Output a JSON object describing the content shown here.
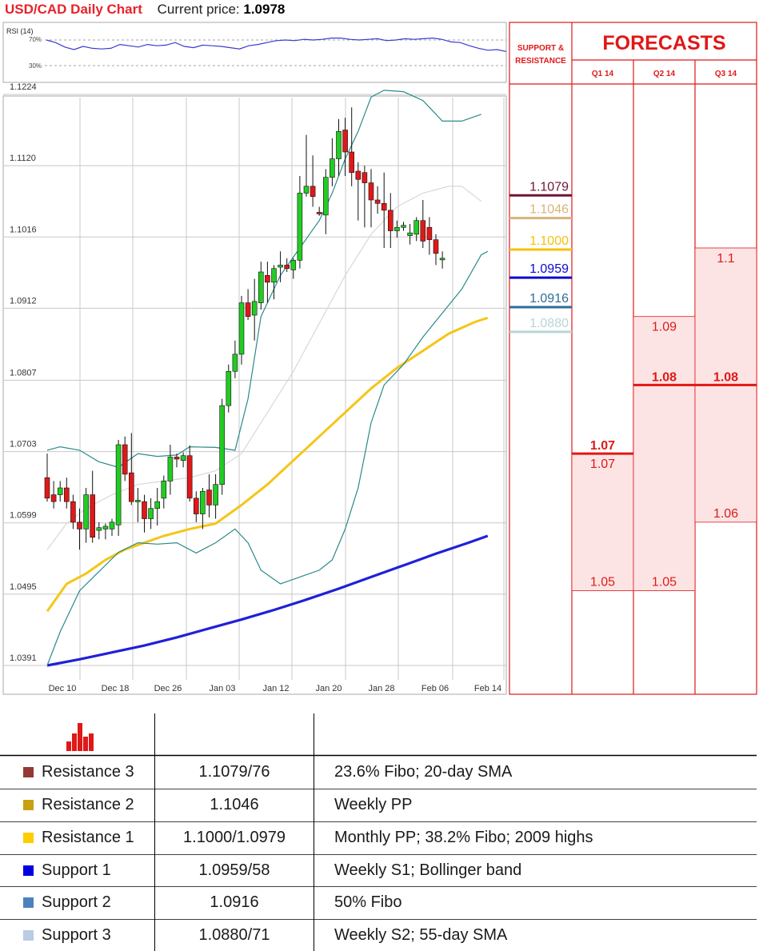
{
  "header": {
    "title": "USD/CAD Daily Chart",
    "current_price_label": "Current price:",
    "current_price": "1.0978"
  },
  "rsi": {
    "label": "RSI (14)",
    "upper_label": "70%",
    "lower_label": "30%",
    "values": [
      70,
      66,
      59,
      55,
      60,
      57,
      56,
      57,
      63,
      61,
      59,
      63,
      61,
      62,
      66,
      60,
      58,
      62,
      61,
      60,
      58,
      56,
      61,
      63,
      66,
      69,
      70,
      69,
      71,
      70,
      71,
      73,
      73,
      71,
      70,
      71,
      72,
      69,
      70,
      72,
      71,
      72,
      73,
      71,
      67,
      66,
      61,
      57,
      54,
      55,
      52
    ]
  },
  "chart_data": {
    "type": "candlestick",
    "title": "USD/CAD Daily Chart",
    "x_labels": [
      "Dec 10",
      "Dec 18",
      "Dec 26",
      "Jan 03",
      "Jan 12",
      "Jan 20",
      "Jan 28",
      "Feb 06",
      "Feb 14"
    ],
    "y_ticks": [
      "1.1224",
      "1.1120",
      "1.1016",
      "1.0912",
      "1.0807",
      "1.0703",
      "1.0599",
      "1.0495",
      "1.0391"
    ],
    "ylim": [
      1.0391,
      1.1224
    ],
    "candles": [
      {
        "o": 1.0665,
        "h": 1.07,
        "l": 1.063,
        "c": 1.0635
      },
      {
        "o": 1.064,
        "h": 1.066,
        "l": 1.062,
        "c": 1.063
      },
      {
        "o": 1.064,
        "h": 1.066,
        "l": 1.063,
        "c": 1.065
      },
      {
        "o": 1.065,
        "h": 1.0665,
        "l": 1.062,
        "c": 1.063
      },
      {
        "o": 1.063,
        "h": 1.064,
        "l": 1.059,
        "c": 1.06
      },
      {
        "o": 1.06,
        "h": 1.062,
        "l": 1.056,
        "c": 1.059
      },
      {
        "o": 1.059,
        "h": 1.065,
        "l": 1.057,
        "c": 1.064
      },
      {
        "o": 1.064,
        "h": 1.0675,
        "l": 1.057,
        "c": 1.0578
      },
      {
        "o": 1.0588,
        "h": 1.06,
        "l": 1.0575,
        "c": 1.0592
      },
      {
        "o": 1.059,
        "h": 1.0598,
        "l": 1.0575,
        "c": 1.0594
      },
      {
        "o": 1.059,
        "h": 1.0605,
        "l": 1.058,
        "c": 1.06
      },
      {
        "o": 1.0596,
        "h": 1.072,
        "l": 1.058,
        "c": 1.0713
      },
      {
        "o": 1.0713,
        "h": 1.0725,
        "l": 1.066,
        "c": 1.067
      },
      {
        "o": 1.0672,
        "h": 1.073,
        "l": 1.0625,
        "c": 1.063
      },
      {
        "o": 1.063,
        "h": 1.065,
        "l": 1.06,
        "c": 1.0632
      },
      {
        "o": 1.063,
        "h": 1.064,
        "l": 1.0585,
        "c": 1.0605
      },
      {
        "o": 1.0605,
        "h": 1.0635,
        "l": 1.059,
        "c": 1.062
      },
      {
        "o": 1.062,
        "h": 1.065,
        "l": 1.0595,
        "c": 1.063
      },
      {
        "o": 1.0635,
        "h": 1.0668,
        "l": 1.062,
        "c": 1.066
      },
      {
        "o": 1.066,
        "h": 1.0713,
        "l": 1.064,
        "c": 1.0695
      },
      {
        "o": 1.0695,
        "h": 1.07,
        "l": 1.068,
        "c": 1.0692
      },
      {
        "o": 1.069,
        "h": 1.0702,
        "l": 1.068,
        "c": 1.0697
      },
      {
        "o": 1.0697,
        "h": 1.0712,
        "l": 1.063,
        "c": 1.0635
      },
      {
        "o": 1.0635,
        "h": 1.0645,
        "l": 1.06,
        "c": 1.0612
      },
      {
        "o": 1.0612,
        "h": 1.065,
        "l": 1.059,
        "c": 1.0645
      },
      {
        "o": 1.0647,
        "h": 1.067,
        "l": 1.0607,
        "c": 1.0625
      },
      {
        "o": 1.0625,
        "h": 1.067,
        "l": 1.0605,
        "c": 1.0655
      },
      {
        "o": 1.0655,
        "h": 1.078,
        "l": 1.064,
        "c": 1.077
      },
      {
        "o": 1.077,
        "h": 1.083,
        "l": 1.076,
        "c": 1.082
      },
      {
        "o": 1.082,
        "h": 1.0865,
        "l": 1.081,
        "c": 1.0845
      },
      {
        "o": 1.0845,
        "h": 1.093,
        "l": 1.083,
        "c": 1.092
      },
      {
        "o": 1.092,
        "h": 1.094,
        "l": 1.0895,
        "c": 1.09
      },
      {
        "o": 1.0902,
        "h": 1.0955,
        "l": 1.0865,
        "c": 1.0922
      },
      {
        "o": 1.092,
        "h": 1.098,
        "l": 1.091,
        "c": 1.0965
      },
      {
        "o": 1.096,
        "h": 1.098,
        "l": 1.092,
        "c": 1.095
      },
      {
        "o": 1.095,
        "h": 1.0975,
        "l": 1.0925,
        "c": 1.097
      },
      {
        "o": 1.0972,
        "h": 1.0995,
        "l": 1.095,
        "c": 1.0975
      },
      {
        "o": 1.0975,
        "h": 1.0985,
        "l": 1.0965,
        "c": 1.097
      },
      {
        "o": 1.0968,
        "h": 1.0985,
        "l": 1.0955,
        "c": 1.0982
      },
      {
        "o": 1.0982,
        "h": 1.1105,
        "l": 1.097,
        "c": 1.108
      },
      {
        "o": 1.108,
        "h": 1.1165,
        "l": 1.1075,
        "c": 1.109
      },
      {
        "o": 1.109,
        "h": 1.1135,
        "l": 1.106,
        "c": 1.1075
      },
      {
        "o": 1.1052,
        "h": 1.106,
        "l": 1.1047,
        "c": 1.105
      },
      {
        "o": 1.1048,
        "h": 1.1115,
        "l": 1.102,
        "c": 1.1103
      },
      {
        "o": 1.1103,
        "h": 1.116,
        "l": 1.109,
        "c": 1.113
      },
      {
        "o": 1.113,
        "h": 1.1188,
        "l": 1.1105,
        "c": 1.117
      },
      {
        "o": 1.1172,
        "h": 1.119,
        "l": 1.1105,
        "c": 1.114
      },
      {
        "o": 1.114,
        "h": 1.1205,
        "l": 1.109,
        "c": 1.111
      },
      {
        "o": 1.1112,
        "h": 1.1125,
        "l": 1.104,
        "c": 1.11
      },
      {
        "o": 1.111,
        "h": 1.112,
        "l": 1.103,
        "c": 1.1095
      },
      {
        "o": 1.1095,
        "h": 1.1115,
        "l": 1.103,
        "c": 1.107
      },
      {
        "o": 1.107,
        "h": 1.109,
        "l": 1.105,
        "c": 1.1065
      },
      {
        "o": 1.1065,
        "h": 1.111,
        "l": 1.1,
        "c": 1.1055
      },
      {
        "o": 1.1055,
        "h": 1.108,
        "l": 1.1,
        "c": 1.1025
      },
      {
        "o": 1.1025,
        "h": 1.104,
        "l": 1.1015,
        "c": 1.103
      },
      {
        "o": 1.103,
        "h": 1.1038,
        "l": 1.1025,
        "c": 1.1033
      },
      {
        "o": 1.1018,
        "h": 1.1035,
        "l": 1.1005,
        "c": 1.1022
      },
      {
        "o": 1.102,
        "h": 1.1045,
        "l": 1.101,
        "c": 1.104
      },
      {
        "o": 1.104,
        "h": 1.107,
        "l": 1.1,
        "c": 1.101
      },
      {
        "o": 1.103,
        "h": 1.1045,
        "l": 1.099,
        "c": 1.1012
      },
      {
        "o": 1.1012,
        "h": 1.102,
        "l": 1.0975,
        "c": 1.0992
      },
      {
        "o": 1.0985,
        "h": 1.0995,
        "l": 1.097,
        "c": 1.0985
      }
    ],
    "bollinger_upper": [
      [
        0,
        1.0705
      ],
      [
        2,
        1.071
      ],
      [
        5,
        1.0705
      ],
      [
        8,
        1.0688
      ],
      [
        11,
        1.068
      ],
      [
        14,
        1.07
      ],
      [
        17,
        1.0696
      ],
      [
        20,
        1.0698
      ],
      [
        22,
        1.071
      ],
      [
        26,
        1.0709
      ],
      [
        29,
        1.0705
      ],
      [
        31,
        1.078
      ],
      [
        33,
        1.09
      ],
      [
        36,
        1.096
      ],
      [
        39,
        1.1
      ],
      [
        42,
        1.104
      ],
      [
        44,
        1.108
      ],
      [
        46,
        1.113
      ],
      [
        48,
        1.117
      ],
      [
        50,
        1.122
      ],
      [
        52,
        1.123
      ],
      [
        55,
        1.1228
      ],
      [
        58,
        1.1215
      ],
      [
        61,
        1.1185
      ],
      [
        64,
        1.1185
      ],
      [
        67,
        1.1195
      ]
    ],
    "bollinger_middle": [
      [
        0,
        1.056
      ],
      [
        3,
        1.0598
      ],
      [
        6,
        1.062
      ],
      [
        10,
        1.064
      ],
      [
        14,
        1.0655
      ],
      [
        18,
        1.066
      ],
      [
        22,
        1.0665
      ],
      [
        26,
        1.0675
      ],
      [
        30,
        1.07
      ],
      [
        34,
        1.076
      ],
      [
        38,
        1.082
      ],
      [
        42,
        1.089
      ],
      [
        46,
        1.096
      ],
      [
        50,
        1.102
      ],
      [
        54,
        1.106
      ],
      [
        58,
        1.108
      ],
      [
        62,
        1.109
      ],
      [
        64,
        1.109
      ],
      [
        67,
        1.1068
      ]
    ],
    "bollinger_lower": [
      [
        0,
        1.0391
      ],
      [
        2,
        1.044
      ],
      [
        5,
        1.05
      ],
      [
        8,
        1.0528
      ],
      [
        11,
        1.0556
      ],
      [
        14,
        1.057
      ],
      [
        17,
        1.0568
      ],
      [
        20,
        1.057
      ],
      [
        23,
        1.0555
      ],
      [
        26,
        1.057
      ],
      [
        29,
        1.059
      ],
      [
        31,
        1.057
      ],
      [
        33,
        1.053
      ],
      [
        36,
        1.051
      ],
      [
        39,
        1.052
      ],
      [
        42,
        1.053
      ],
      [
        44,
        1.0545
      ],
      [
        46,
        1.059
      ],
      [
        48,
        1.065
      ],
      [
        50,
        1.0745
      ],
      [
        52,
        1.08
      ],
      [
        55,
        1.083
      ],
      [
        58,
        1.087
      ],
      [
        61,
        1.0905
      ],
      [
        64,
        1.094
      ],
      [
        67,
        1.099
      ],
      [
        68,
        1.0995
      ]
    ],
    "sma_55": [
      [
        0,
        1.047
      ],
      [
        3,
        1.051
      ],
      [
        6,
        1.0525
      ],
      [
        9,
        1.0545
      ],
      [
        12,
        1.056
      ],
      [
        15,
        1.057
      ],
      [
        18,
        1.058
      ],
      [
        22,
        1.059
      ],
      [
        26,
        1.0598
      ],
      [
        30,
        1.0625
      ],
      [
        34,
        1.0655
      ],
      [
        38,
        1.069
      ],
      [
        42,
        1.0725
      ],
      [
        46,
        1.076
      ],
      [
        50,
        1.0795
      ],
      [
        54,
        1.0825
      ],
      [
        58,
        1.085
      ],
      [
        62,
        1.0875
      ],
      [
        66,
        1.0892
      ],
      [
        68,
        1.0898
      ]
    ],
    "sma_200": [
      [
        0,
        1.0391
      ],
      [
        5,
        1.04
      ],
      [
        10,
        1.041
      ],
      [
        15,
        1.042
      ],
      [
        20,
        1.0432
      ],
      [
        25,
        1.0445
      ],
      [
        30,
        1.0458
      ],
      [
        35,
        1.0472
      ],
      [
        40,
        1.0487
      ],
      [
        45,
        1.0503
      ],
      [
        50,
        1.052
      ],
      [
        55,
        1.0537
      ],
      [
        60,
        1.0554
      ],
      [
        65,
        1.057
      ],
      [
        68,
        1.058
      ]
    ]
  },
  "levels": {
    "header": "SUPPORT & RESISTANCE",
    "items": [
      {
        "label": "1.1079",
        "value": 1.1079,
        "color": "#6b1736"
      },
      {
        "label": "1.1046",
        "value": 1.1046,
        "color": "#d7b47a"
      },
      {
        "label": "1.1000",
        "value": 1.1,
        "color": "#f4c20d"
      },
      {
        "label": "1.0959",
        "value": 1.0959,
        "color": "#0a0ad0"
      },
      {
        "label": "1.0916",
        "value": 1.0916,
        "color": "#2f6d97"
      },
      {
        "label": "1.0880",
        "value": 1.088,
        "color": "#b9d5d5"
      }
    ]
  },
  "forecasts": {
    "title": "FORECASTS",
    "columns": [
      {
        "label": "Q1 14",
        "low": 1.05,
        "high": 1.07,
        "main": "1.07",
        "low_label": "1.05",
        "high_label": "1.07"
      },
      {
        "label": "Q2 14",
        "low": 1.05,
        "high": 1.09,
        "main": "1.08",
        "low_label": "1.05",
        "high_label": "1.09"
      },
      {
        "label": "Q3 14",
        "low": 1.06,
        "high": 1.1,
        "main": "1.08",
        "low_label": "1.06",
        "high_label": "1.1"
      }
    ]
  },
  "table": {
    "rows": [
      {
        "name": "Resistance 3",
        "value": "1.1079/76",
        "desc": "23.6% Fibo; 20-day SMA",
        "color": "#953735"
      },
      {
        "name": "Resistance 2",
        "value": "1.1046",
        "desc": "Weekly PP",
        "color": "#c9a012"
      },
      {
        "name": "Resistance 1",
        "value": "1.1000/1.0979",
        "desc": "Monthly PP; 38.2% Fibo; 2009 highs",
        "color": "#ffcc00"
      },
      {
        "name": "Support 1",
        "value": "1.0959/58",
        "desc": "Weekly S1; Bollinger band",
        "color": "#0000e0"
      },
      {
        "name": "Support 2",
        "value": "1.0916",
        "desc": "50% Fibo",
        "color": "#4a82bd"
      },
      {
        "name": "Support 3",
        "value": "1.0880/71",
        "desc": "Weekly S2; 55-day SMA",
        "color": "#b8cce4"
      }
    ]
  }
}
